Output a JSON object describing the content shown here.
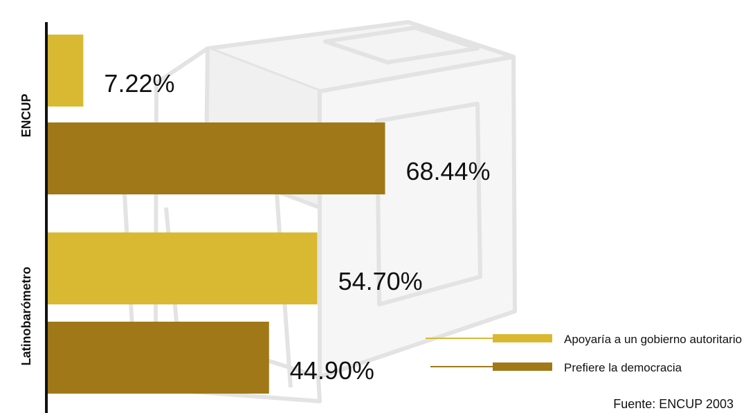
{
  "chart_data": {
    "type": "bar",
    "orientation": "horizontal",
    "categories": [
      "ENCUP",
      "Latinobarómetro"
    ],
    "series": [
      {
        "name": "Apoyaría a un gobierno autoritario",
        "values": [
          7.22,
          54.7
        ],
        "labels": [
          "7.22%",
          "54.70%"
        ],
        "color": "#d9b932"
      },
      {
        "name": "Prefiere la democracia",
        "values": [
          68.44,
          44.9
        ],
        "labels": [
          "68.44%",
          "44.90%"
        ],
        "color": "#a07818"
      }
    ],
    "xlim": [
      0,
      90
    ],
    "grid": false,
    "legend_position": "bottom-right"
  },
  "source": "Fuente: ENCUP 2003",
  "colors": {
    "axis": "#111111",
    "text": "#111111",
    "ballot_box": "#e6e6e6"
  },
  "icons": {
    "background": "ballot-box-illustration"
  }
}
